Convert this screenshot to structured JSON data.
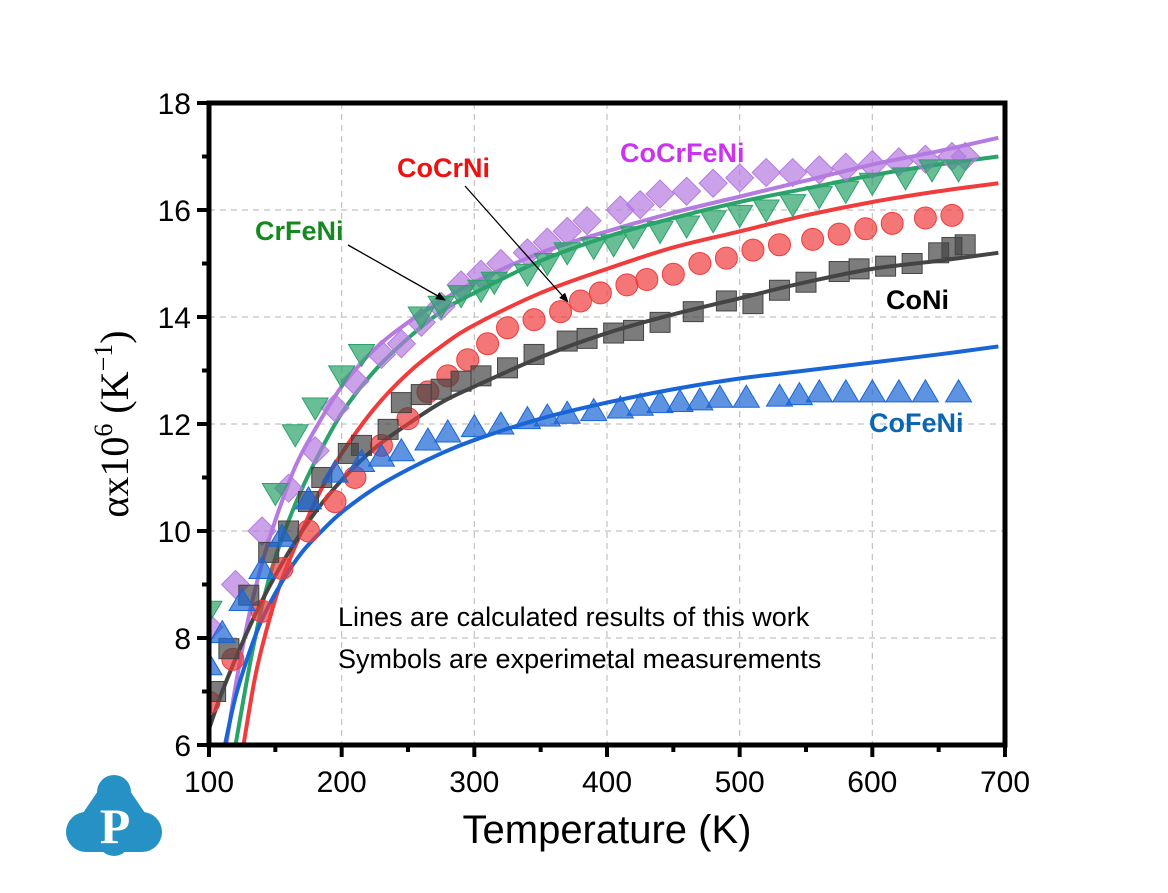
{
  "chart_data": {
    "type": "line",
    "title": "",
    "xlabel": "Temperature (K)",
    "ylabel": "αx10⁶ (K⁻¹)",
    "ylabel_parts": {
      "base": "αx10",
      "exp": "6",
      "unit_open": " (K",
      "unit_exp": "−1",
      "unit_close": ")"
    },
    "xlim": [
      100,
      700
    ],
    "ylim": [
      6,
      18
    ],
    "xticks": [
      100,
      200,
      300,
      400,
      500,
      600,
      700
    ],
    "yticks": [
      6,
      8,
      10,
      12,
      14,
      16,
      18
    ],
    "grid": true,
    "annotations": [
      "Lines are calculated results of this work",
      "Symbols are experimetal measurements"
    ],
    "series": [
      {
        "name": "CoCrFeNi",
        "color": "#b57be0",
        "label_color": "#cc33ee",
        "marker": "diamond",
        "calc": {
          "x": [
            113,
            120,
            130,
            140,
            150,
            165,
            180,
            200,
            225,
            250,
            275,
            300,
            350,
            400,
            450,
            500,
            550,
            600,
            650,
            695
          ],
          "y": [
            6.0,
            7.1,
            8.4,
            9.4,
            10.2,
            11.2,
            11.9,
            12.7,
            13.4,
            13.9,
            14.3,
            14.65,
            15.2,
            15.6,
            15.95,
            16.25,
            16.55,
            16.85,
            17.1,
            17.35
          ]
        },
        "measured": {
          "x": [
            100,
            120,
            140,
            160,
            180,
            195,
            210,
            230,
            245,
            260,
            275,
            290,
            305,
            320,
            340,
            355,
            370,
            385,
            410,
            425,
            440,
            460,
            480,
            500,
            520,
            540,
            560,
            580,
            600,
            620,
            640,
            660,
            670
          ],
          "y": [
            8.2,
            9.0,
            10.0,
            10.8,
            11.5,
            12.3,
            12.8,
            13.3,
            13.5,
            13.9,
            14.2,
            14.6,
            14.8,
            15.0,
            15.2,
            15.4,
            15.6,
            15.8,
            16.0,
            16.1,
            16.3,
            16.35,
            16.5,
            16.6,
            16.7,
            16.7,
            16.75,
            16.8,
            16.85,
            16.9,
            16.95,
            17.0,
            17.0
          ]
        }
      },
      {
        "name": "CrFeNi",
        "color": "#2aa36a",
        "label_color": "#15881f",
        "marker": "triangle-down",
        "calc": {
          "x": [
            120,
            130,
            140,
            150,
            165,
            180,
            200,
            225,
            250,
            275,
            300,
            350,
            400,
            450,
            500,
            550,
            600,
            650,
            695
          ],
          "y": [
            6.0,
            7.4,
            8.6,
            9.5,
            10.5,
            11.3,
            12.2,
            13.0,
            13.6,
            14.1,
            14.45,
            15.05,
            15.5,
            15.85,
            16.15,
            16.4,
            16.65,
            16.85,
            17.0
          ]
        },
        "measured": {
          "x": [
            100,
            150,
            165,
            180,
            200,
            215,
            260,
            275,
            290,
            305,
            315,
            340,
            355,
            370,
            390,
            405,
            420,
            440,
            460,
            480,
            500,
            520,
            540,
            560,
            580,
            600,
            625,
            645,
            665
          ],
          "y": [
            8.5,
            10.7,
            11.8,
            12.3,
            12.9,
            13.3,
            14.0,
            14.2,
            14.4,
            14.5,
            14.65,
            14.8,
            15.0,
            15.2,
            15.3,
            15.35,
            15.5,
            15.6,
            15.7,
            15.8,
            15.9,
            16.0,
            16.1,
            16.25,
            16.35,
            16.5,
            16.6,
            16.75,
            16.75
          ]
        }
      },
      {
        "name": "CoCrNi",
        "color": "#f03c3c",
        "label_color": "#ee1111",
        "marker": "circle",
        "calc": {
          "x": [
            126,
            135,
            145,
            155,
            170,
            185,
            200,
            225,
            250,
            275,
            300,
            350,
            400,
            450,
            500,
            550,
            600,
            650,
            695
          ],
          "y": [
            6.0,
            7.3,
            8.3,
            9.1,
            10.0,
            10.8,
            11.45,
            12.3,
            12.95,
            13.45,
            13.85,
            14.45,
            14.9,
            15.3,
            15.6,
            15.9,
            16.15,
            16.35,
            16.5
          ]
        },
        "measured": {
          "x": [
            100,
            118,
            140,
            155,
            175,
            195,
            210,
            230,
            250,
            265,
            280,
            295,
            310,
            325,
            345,
            365,
            380,
            395,
            415,
            430,
            450,
            470,
            490,
            510,
            530,
            555,
            575,
            595,
            615,
            640,
            660
          ],
          "y": [
            6.8,
            7.6,
            8.5,
            9.3,
            10.0,
            10.55,
            11.0,
            11.6,
            12.1,
            12.6,
            12.9,
            13.2,
            13.5,
            13.8,
            13.95,
            14.1,
            14.3,
            14.45,
            14.6,
            14.7,
            14.8,
            15.0,
            15.1,
            15.25,
            15.35,
            15.45,
            15.55,
            15.65,
            15.75,
            15.85,
            15.9
          ]
        }
      },
      {
        "name": "CoNi",
        "color": "#454545",
        "label_color": "#000000",
        "marker": "square",
        "calc": {
          "x": [
            100,
            110,
            125,
            140,
            160,
            180,
            200,
            225,
            250,
            275,
            300,
            350,
            400,
            450,
            500,
            550,
            600,
            650,
            695
          ],
          "y": [
            6.3,
            7.0,
            7.9,
            8.7,
            9.6,
            10.35,
            10.95,
            11.55,
            12.0,
            12.4,
            12.7,
            13.25,
            13.7,
            14.05,
            14.35,
            14.65,
            14.9,
            15.05,
            15.2
          ]
        },
        "measured": {
          "x": [
            105,
            115,
            130,
            145,
            160,
            175,
            185,
            205,
            215,
            235,
            245,
            260,
            275,
            290,
            305,
            325,
            345,
            370,
            385,
            405,
            420,
            440,
            465,
            490,
            510,
            530,
            550,
            575,
            590,
            610,
            630,
            650,
            660,
            670
          ],
          "y": [
            7.0,
            7.8,
            8.8,
            9.6,
            10.0,
            10.55,
            11.0,
            11.45,
            11.6,
            11.9,
            12.4,
            12.55,
            12.65,
            12.8,
            12.9,
            13.05,
            13.3,
            13.55,
            13.6,
            13.7,
            13.75,
            13.9,
            14.1,
            14.3,
            14.25,
            14.5,
            14.65,
            14.85,
            14.9,
            14.95,
            15.0,
            15.2,
            15.3,
            15.35
          ]
        }
      },
      {
        "name": "CoFeNi",
        "color": "#1a65d6",
        "label_color": "#0a66b0",
        "marker": "triangle-up",
        "calc": {
          "x": [
            112,
            120,
            130,
            140,
            155,
            170,
            185,
            200,
            225,
            250,
            275,
            300,
            350,
            400,
            450,
            500,
            550,
            600,
            650,
            695
          ],
          "y": [
            6.0,
            6.9,
            7.7,
            8.35,
            9.05,
            9.6,
            10.0,
            10.35,
            10.8,
            11.15,
            11.45,
            11.7,
            12.1,
            12.4,
            12.65,
            12.85,
            13.0,
            13.15,
            13.3,
            13.45
          ]
        },
        "measured": {
          "x": [
            100,
            110,
            125,
            140,
            155,
            175,
            195,
            215,
            230,
            245,
            265,
            280,
            300,
            320,
            340,
            355,
            370,
            390,
            410,
            425,
            440,
            455,
            470,
            485,
            505,
            530,
            545,
            560,
            580,
            600,
            620,
            640,
            665
          ],
          "y": [
            7.5,
            8.1,
            8.7,
            9.3,
            9.9,
            10.6,
            11.1,
            11.3,
            11.4,
            11.5,
            11.7,
            11.85,
            11.95,
            12.0,
            12.1,
            12.15,
            12.2,
            12.25,
            12.3,
            12.35,
            12.4,
            12.42,
            12.45,
            12.5,
            12.5,
            12.52,
            12.55,
            12.6,
            12.6,
            12.6,
            12.6,
            12.6,
            12.6
          ]
        }
      }
    ],
    "labels": [
      {
        "text": "CoCrFeNi",
        "series": "CoCrFeNi"
      },
      {
        "text": "CrFeNi",
        "series": "CrFeNi"
      },
      {
        "text": "CoCrNi",
        "series": "CoCrNi"
      },
      {
        "text": "CoNi",
        "series": "CoNi"
      },
      {
        "text": "CoFeNi",
        "series": "CoFeNi"
      }
    ]
  },
  "logo": {
    "letter": "P",
    "color": "#2691c4"
  }
}
